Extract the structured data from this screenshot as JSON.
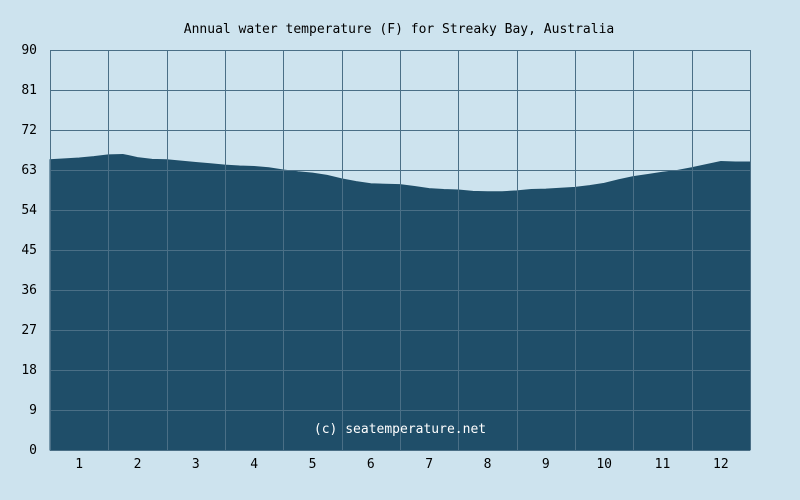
{
  "colors": {
    "background": "#cde3ee",
    "area_fill": "#1f4e69",
    "grid_line": "#4a6f86",
    "text": "#000000",
    "credit_text": "#ffffff"
  },
  "chart_data": {
    "type": "area",
    "title": "Annual water temperature (F) for Streaky Bay, Australia",
    "xlabel": "",
    "ylabel": "",
    "credit": "(c) seatemperature.net",
    "ylim": [
      0,
      90
    ],
    "yticks": [
      "0",
      "9",
      "18",
      "27",
      "36",
      "45",
      "54",
      "63",
      "72",
      "81",
      "90"
    ],
    "xlim": [
      0.5,
      12.5
    ],
    "xticks": [
      "1",
      "2",
      "3",
      "4",
      "5",
      "6",
      "7",
      "8",
      "9",
      "10",
      "11",
      "12"
    ],
    "grid": true,
    "legend": "none",
    "series": [
      {
        "x": [
          0.5,
          0.75,
          1.0,
          1.25,
          1.5,
          1.75,
          2.0,
          2.25,
          2.5,
          2.75,
          3.0,
          3.25,
          3.5,
          3.75,
          4.0,
          4.25,
          4.5,
          4.75,
          5.0,
          5.25,
          5.5,
          5.75,
          6.0,
          6.25,
          6.5,
          6.75,
          7.0,
          7.25,
          7.5,
          7.75,
          8.0,
          8.25,
          8.5,
          8.75,
          9.0,
          9.25,
          9.5,
          9.75,
          10.0,
          10.25,
          10.5,
          10.75,
          11.0,
          11.25,
          11.5,
          11.75,
          12.0,
          12.25,
          12.5
        ],
        "y": [
          65.3,
          65.5,
          65.7,
          66.0,
          66.4,
          66.5,
          65.8,
          65.4,
          65.3,
          65.0,
          64.7,
          64.4,
          64.1,
          63.9,
          63.8,
          63.5,
          63.0,
          62.6,
          62.3,
          61.8,
          61.0,
          60.4,
          59.9,
          59.8,
          59.7,
          59.3,
          58.8,
          58.6,
          58.5,
          58.2,
          58.1,
          58.1,
          58.3,
          58.6,
          58.7,
          58.9,
          59.1,
          59.5,
          60.0,
          60.8,
          61.5,
          62.0,
          62.5,
          62.9,
          63.5,
          64.2,
          64.9,
          64.8,
          64.8
        ]
      }
    ]
  }
}
